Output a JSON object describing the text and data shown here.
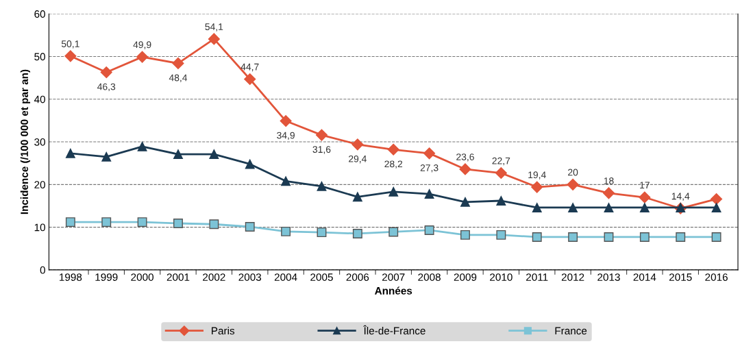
{
  "chart_data": {
    "type": "line",
    "xlabel": "Années",
    "ylabel": "Incidence (/100 000 et par an)",
    "categories": [
      "1998",
      "1999",
      "2000",
      "2001",
      "2002",
      "2003",
      "2004",
      "2005",
      "2006",
      "2007",
      "2008",
      "2009",
      "2010",
      "2011",
      "2012",
      "2013",
      "2014",
      "2015",
      "2016"
    ],
    "series": [
      {
        "name": "Paris",
        "color": "#e2553a",
        "marker": "diamond",
        "values": [
          50.1,
          46.3,
          49.9,
          48.4,
          54.1,
          44.7,
          34.9,
          31.6,
          29.4,
          28.2,
          27.3,
          23.6,
          22.7,
          19.4,
          20,
          18,
          17,
          14.4,
          16.6
        ],
        "value_labels": [
          "50,1",
          "46,3",
          "49,9",
          "48,4",
          "54,1",
          "44,7",
          "34,9",
          "31,6",
          "29,4",
          "28,2",
          "27,3",
          "23,6",
          "22,7",
          "19,4",
          "20",
          "18",
          "17",
          "14,4",
          null
        ]
      },
      {
        "name": "Île-de-France",
        "color": "#1b3a52",
        "marker": "triangle",
        "values": [
          27.3,
          26.5,
          28.9,
          27.1,
          27.1,
          24.8,
          20.8,
          19.6,
          17.1,
          18.3,
          17.8,
          15.9,
          16.2,
          14.6,
          14.6,
          14.6,
          14.6,
          14.6,
          14.6
        ]
      },
      {
        "name": "France",
        "color": "#7cc3d6",
        "marker": "square",
        "values": [
          11.2,
          11.2,
          11.2,
          10.9,
          10.7,
          10.1,
          9.0,
          8.8,
          8.5,
          8.9,
          9.3,
          8.2,
          8.2,
          7.7,
          7.7,
          7.7,
          7.7,
          7.7,
          7.7
        ]
      }
    ],
    "ylim": [
      0,
      60
    ],
    "yticks": [
      0,
      10,
      20,
      30,
      40,
      50,
      60
    ],
    "grid": "y",
    "line_style": "solid",
    "legend": "bottom"
  }
}
